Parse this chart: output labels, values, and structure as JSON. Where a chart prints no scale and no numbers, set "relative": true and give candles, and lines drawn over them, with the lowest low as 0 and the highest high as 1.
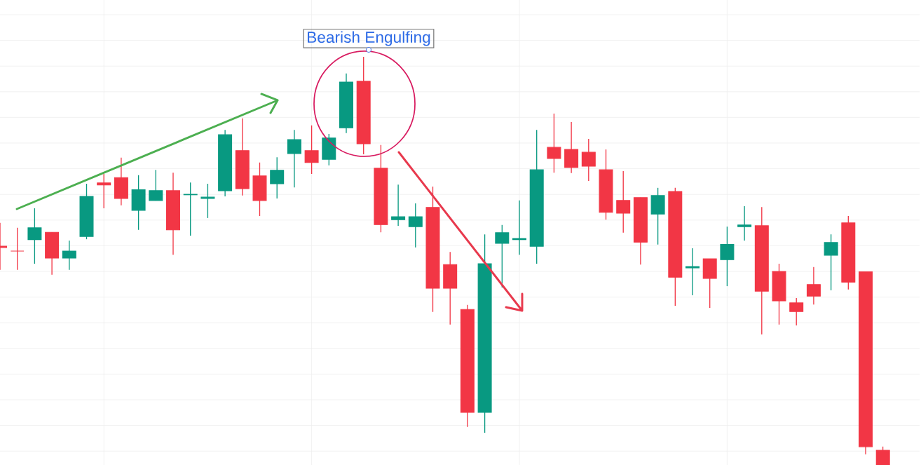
{
  "chart_data": {
    "type": "candlestick",
    "relative": true,
    "grid": true,
    "categories": [
      null,
      null,
      null,
      null,
      null,
      null,
      null,
      null,
      null,
      null,
      null,
      null,
      null,
      null,
      null,
      null,
      null,
      null,
      null,
      null,
      null,
      null,
      null,
      null,
      null,
      null,
      null,
      null,
      null,
      null,
      null,
      null,
      null,
      null,
      null,
      null,
      null,
      null,
      null,
      null,
      null,
      null,
      null,
      null,
      null,
      null,
      null,
      null,
      null,
      null,
      null,
      null
    ],
    "ohlc": [
      [
        0.536,
        0.593,
        0.478,
        0.533
      ],
      [
        0.524,
        0.581,
        0.478,
        0.524
      ],
      [
        0.552,
        0.629,
        0.493,
        0.581
      ],
      [
        0.57,
        0.57,
        0.466,
        0.507
      ],
      [
        0.507,
        0.55,
        0.478,
        0.524
      ],
      [
        0.56,
        0.689,
        0.553,
        0.658
      ],
      [
        0.691,
        0.713,
        0.629,
        0.686
      ],
      [
        0.704,
        0.753,
        0.636,
        0.653
      ],
      [
        0.624,
        0.71,
        0.576,
        0.674
      ],
      [
        0.648,
        0.723,
        0.648,
        0.672
      ],
      [
        0.672,
        0.716,
        0.515,
        0.576
      ],
      [
        0.662,
        0.692,
        0.562,
        0.663
      ],
      [
        0.653,
        0.689,
        0.605,
        0.656
      ],
      [
        0.672,
        0.821,
        0.658,
        0.809
      ],
      [
        0.77,
        0.849,
        0.66,
        0.677
      ],
      [
        0.708,
        0.741,
        0.61,
        0.648
      ],
      [
        0.689,
        0.754,
        0.653,
        0.722
      ],
      [
        0.763,
        0.821,
        0.68,
        0.797
      ],
      [
        0.77,
        0.832,
        0.713,
        0.741
      ],
      [
        0.749,
        0.811,
        0.734,
        0.801
      ],
      [
        0.826,
        0.959,
        0.813,
        0.938
      ],
      [
        0.94,
        1,
        0.761,
        0.787
      ],
      [
        0.727,
        0.784,
        0.57,
        0.589
      ],
      [
        0.601,
        0.687,
        0.586,
        0.608
      ],
      [
        0.584,
        0.641,
        0.533,
        0.608
      ],
      [
        0.631,
        0.682,
        0.375,
        0.433
      ],
      [
        0.491,
        0.522,
        0.344,
        0.433
      ],
      [
        0.381,
        0.392,
        0.093,
        0.129
      ],
      [
        0.129,
        0.565,
        0.079,
        0.493
      ],
      [
        0.543,
        0.588,
        0.435,
        0.569
      ],
      [
        0.552,
        0.648,
        0.515,
        0.555
      ],
      [
        0.536,
        0.821,
        0.493,
        0.723
      ],
      [
        0.778,
        0.861,
        0.716,
        0.751
      ],
      [
        0.773,
        0.84,
        0.715,
        0.729
      ],
      [
        0.766,
        0.799,
        0.696,
        0.732
      ],
      [
        0.723,
        0.773,
        0.601,
        0.619
      ],
      [
        0.648,
        0.72,
        0.569,
        0.617
      ],
      [
        0.655,
        0.655,
        0.491,
        0.546
      ],
      [
        0.615,
        0.679,
        0.54,
        0.66
      ],
      [
        0.67,
        0.679,
        0.39,
        0.46
      ],
      [
        0.483,
        0.531,
        0.416,
        0.486
      ],
      [
        0.505,
        0.505,
        0.385,
        0.457
      ],
      [
        0.503,
        0.584,
        0.438,
        0.54
      ],
      [
        0.584,
        0.634,
        0.55,
        0.588
      ],
      [
        0.586,
        0.632,
        0.32,
        0.426
      ],
      [
        0.474,
        0.493,
        0.344,
        0.402
      ],
      [
        0.397,
        0.409,
        0.342,
        0.376
      ],
      [
        0.442,
        0.485,
        0.393,
        0.414
      ],
      [
        0.514,
        0.565,
        0.428,
        0.545
      ],
      [
        0.593,
        0.61,
        0.43,
        0.448
      ],
      [
        0.473,
        0.473,
        0.026,
        0.045
      ],
      [
        0.036,
        0.045,
        0,
        0
      ]
    ],
    "colors": [
      "#f23645",
      "#f23645",
      "#089981",
      "#f23645",
      "#089981",
      "#089981",
      "#f23645",
      "#f23645",
      "#089981",
      "#089981",
      "#f23645",
      "#089981",
      "#089981",
      "#089981",
      "#f23645",
      "#f23645",
      "#089981",
      "#089981",
      "#f23645",
      "#089981",
      "#089981",
      "#f23645",
      "#f23645",
      "#089981",
      "#089981",
      "#f23645",
      "#f23645",
      "#f23645",
      "#089981",
      "#089981",
      "#089981",
      "#089981",
      "#f23645",
      "#f23645",
      "#f23645",
      "#f23645",
      "#f23645",
      "#f23645",
      "#089981",
      "#f23645",
      "#089981",
      "#f23645",
      "#089981",
      "#089981",
      "#f23645",
      "#f23645",
      "#f23645",
      "#f23645",
      "#089981",
      "#f23645",
      "#f23645",
      "#f23645"
    ],
    "annotations": [
      "Bearish Engulfing"
    ]
  }
}
